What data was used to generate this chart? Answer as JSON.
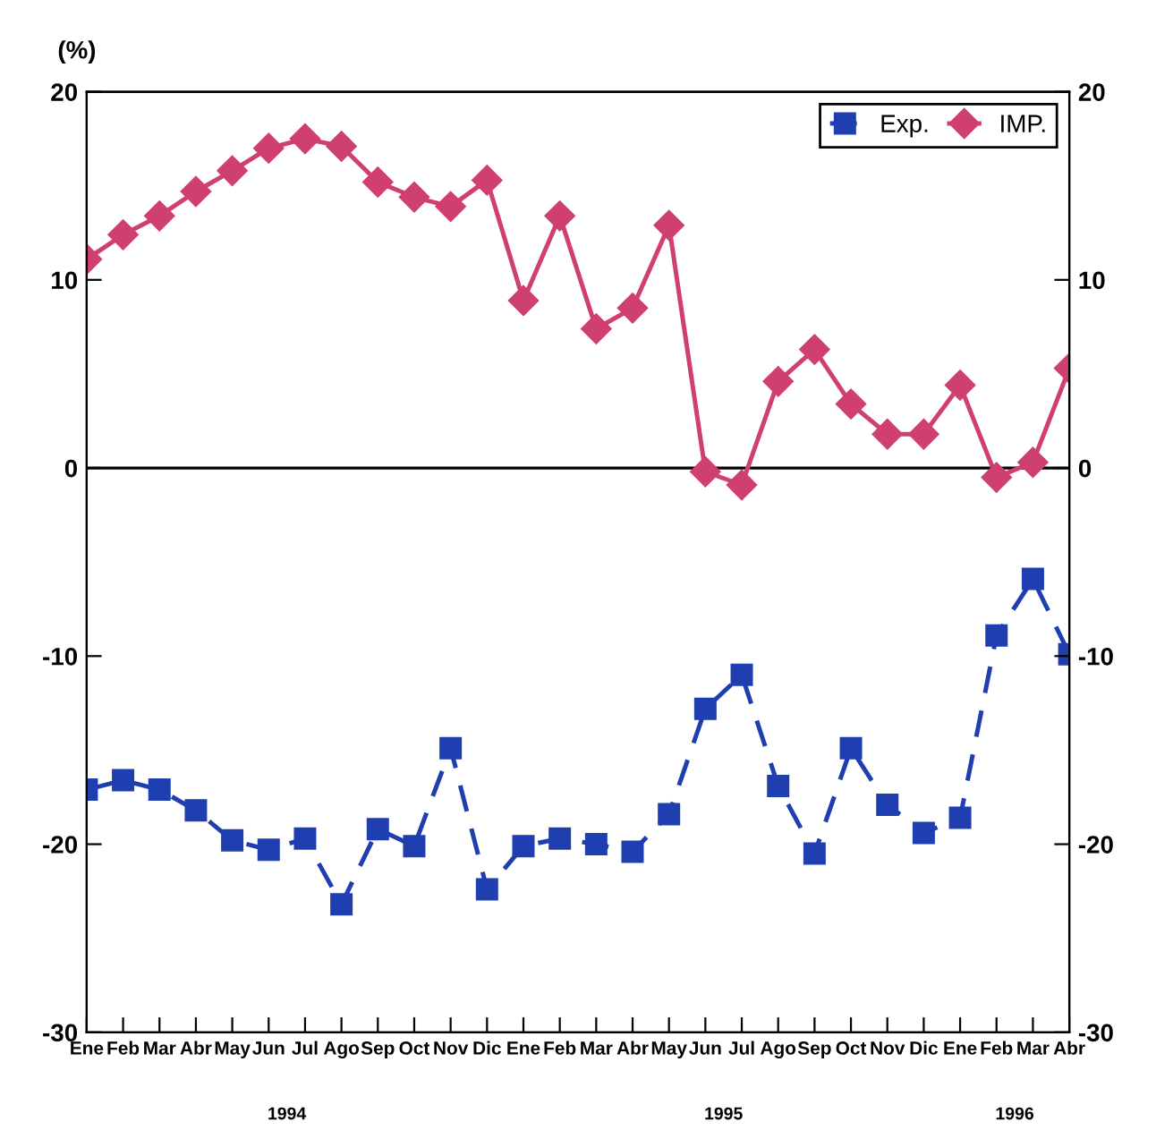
{
  "chart_data": {
    "type": "line",
    "ylabel": "(%)",
    "categories": [
      "Ene",
      "Feb",
      "Mar",
      "Abr",
      "May",
      "Jun",
      "Jul",
      "Ago",
      "Sep",
      "Oct",
      "Nov",
      "Dic",
      "Ene",
      "Feb",
      "Mar",
      "Abr",
      "May",
      "Jun",
      "Jul",
      "Ago",
      "Sep",
      "Oct",
      "Nov",
      "Dic",
      "Ene",
      "Feb",
      "Mar",
      "Abr"
    ],
    "series": [
      {
        "name": "Exp.",
        "color": "#1f3fb0",
        "marker": "square",
        "line_style": "dashed",
        "values": [
          -17.1,
          -16.6,
          -17.1,
          -18.2,
          -19.8,
          -20.3,
          -19.7,
          -23.2,
          -19.2,
          -20.1,
          -14.9,
          -22.4,
          -20.1,
          -19.7,
          -20.0,
          -20.4,
          -18.4,
          -12.8,
          -11.0,
          -16.9,
          -20.5,
          -14.9,
          -17.9,
          -19.4,
          -18.6,
          -8.9,
          -5.9,
          -9.9
        ]
      },
      {
        "name": "IMP.",
        "color": "#d0406e",
        "marker": "diamond",
        "line_style": "solid",
        "values": [
          11.1,
          12.4,
          13.4,
          14.7,
          15.8,
          17.0,
          17.5,
          17.1,
          15.2,
          14.4,
          13.9,
          15.3,
          8.9,
          13.4,
          7.4,
          8.5,
          12.9,
          -0.2,
          -0.9,
          4.6,
          6.3,
          3.4,
          1.8,
          1.8,
          4.4,
          -0.5,
          0.3,
          5.3
        ]
      }
    ],
    "ylim": [
      -30,
      20
    ],
    "yticks": [
      -30,
      -20,
      -10,
      0,
      10,
      20
    ],
    "y2lim": [
      -30,
      20
    ],
    "y2ticks": [
      -30,
      -20,
      -10,
      0,
      10,
      20
    ],
    "ref_lines": [
      {
        "axis": "y",
        "value": 0,
        "color": "#000000"
      }
    ],
    "annotations": [
      "1994",
      "1995",
      "1996"
    ],
    "grid": false,
    "legend": "top right"
  }
}
